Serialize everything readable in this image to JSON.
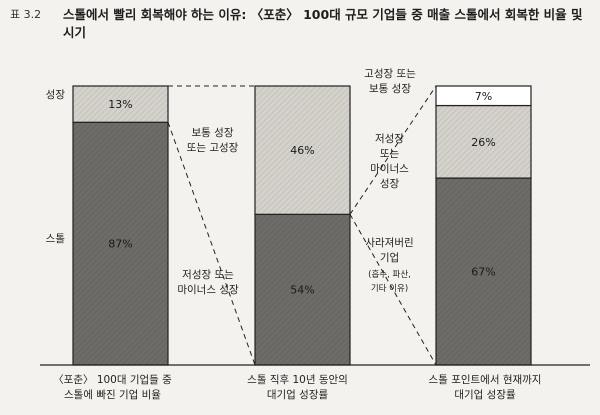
{
  "figure": {
    "label": "표 3.2",
    "title": "스톨에서 빨리 회복해야 하는 이유: 〈포춘〉 100대 규모 기업들 중 매출 스톨에서 회복한 비율 및 시기"
  },
  "chart_data": {
    "type": "bar",
    "stacked": true,
    "ylim": [
      0,
      100
    ],
    "grid": false,
    "legend": "none",
    "bars": [
      {
        "category": "〈포춘〉 100대 기업들 중\n스톨에 빠진 기업 비율",
        "segments": [
          {
            "label": "스톨",
            "value": 87,
            "value_label": "87%",
            "color": "#6e6c68"
          },
          {
            "label": "성장",
            "value": 13,
            "value_label": "13%",
            "color": "#d4d2cb"
          }
        ]
      },
      {
        "category": "스톨 직후 10년 동안의\n대기업 성장률",
        "segments": [
          {
            "label": "저성장 또는\n마이너스 성장",
            "value": 54,
            "value_label": "54%",
            "color": "#6e6c68"
          },
          {
            "label": "보통 성장\n또는 고성장",
            "value": 46,
            "value_label": "46%",
            "color": "#d4d2cb"
          }
        ]
      },
      {
        "category": "스톨 포인트에서 현재까지\n대기업 성장률",
        "segments": [
          {
            "label": "사라져버린\n기업",
            "sublabel": "(흡수, 파산,\n기타 이유)",
            "value": 67,
            "value_label": "67%",
            "color": "#6e6c68"
          },
          {
            "label": "저성장\n또는\n마이너스\n성장",
            "value": 26,
            "value_label": "26%",
            "color": "#d4d2cb"
          },
          {
            "label": "고성장 또는\n보통 성장",
            "value": 7,
            "value_label": "7%",
            "color": "#ffffff"
          }
        ]
      }
    ]
  }
}
